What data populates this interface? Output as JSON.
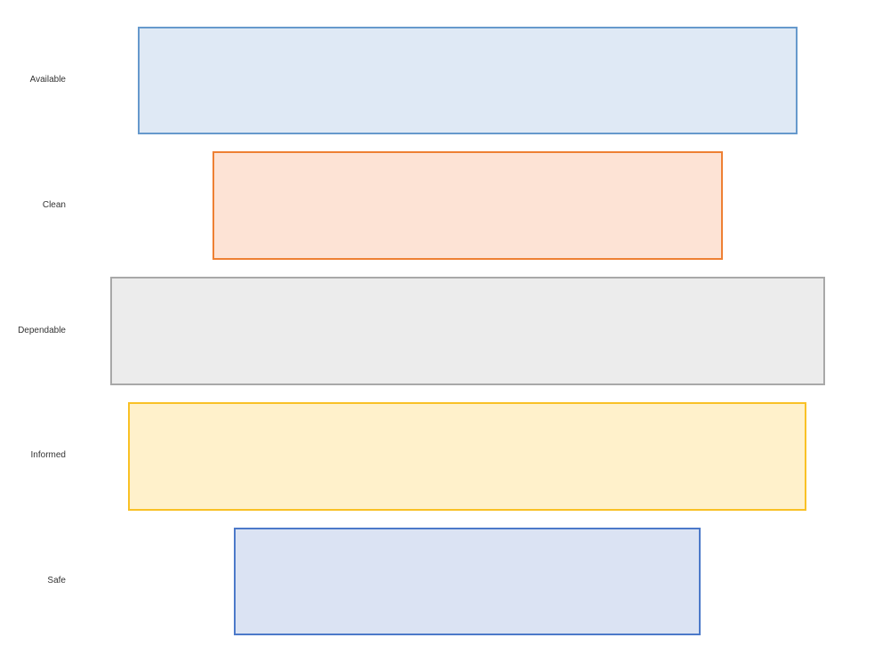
{
  "rows": [
    {
      "label": "Available",
      "fill": "#dfe9f5",
      "stroke": "#6699cc"
    },
    {
      "label": "Clean",
      "fill": "#fde3d5",
      "stroke": "#ee8033"
    },
    {
      "label": "Dependable",
      "fill": "#ececec",
      "stroke": "#a8a8a8"
    },
    {
      "label": "Informed",
      "fill": "#fff1cb",
      "stroke": "#f9c125"
    },
    {
      "label": "Safe",
      "fill": "#dbe3f3",
      "stroke": "#4c79c9"
    }
  ]
}
